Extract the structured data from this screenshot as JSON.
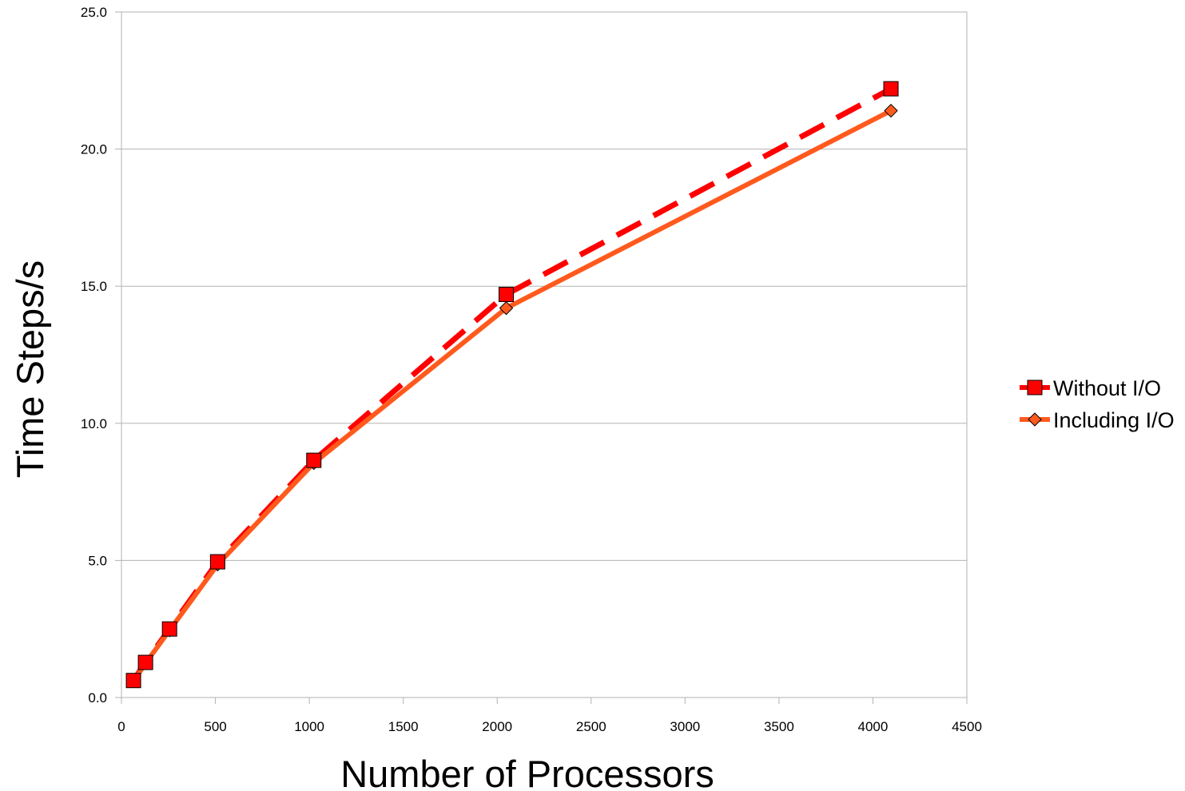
{
  "chart_data": {
    "type": "line",
    "title": "",
    "xlabel": "Number of Processors",
    "ylabel": "Time Steps/s",
    "xlim": [
      0,
      4500
    ],
    "ylim": [
      0,
      25
    ],
    "x_ticks": [
      "0",
      "500",
      "1000",
      "1500",
      "2000",
      "2500",
      "3000",
      "3500",
      "4000",
      "4500"
    ],
    "y_ticks": [
      "0.0",
      "5.0",
      "10.0",
      "15.0",
      "20.0",
      "25.0"
    ],
    "grid": "horizontal",
    "legend_position": "right",
    "series": [
      {
        "name": "Without I/O",
        "color": "#ff0000",
        "line_style": "dashed",
        "marker": "square",
        "x": [
          64,
          128,
          256,
          512,
          1024,
          2048,
          4096
        ],
        "y": [
          0.62,
          1.28,
          2.5,
          4.95,
          8.65,
          14.7,
          22.2
        ]
      },
      {
        "name": "Including I/O",
        "color": "#ff5a1e",
        "line_style": "solid",
        "marker": "diamond",
        "x": [
          64,
          128,
          256,
          512,
          1024,
          2048,
          4096
        ],
        "y": [
          0.6,
          1.25,
          2.45,
          4.85,
          8.55,
          14.2,
          21.4
        ]
      }
    ]
  }
}
